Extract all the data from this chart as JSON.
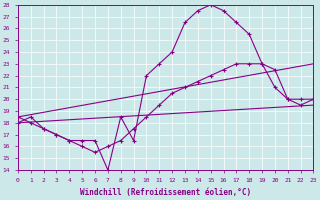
{
  "xlabel": "Windchill (Refroidissement éolien,°C)",
  "bg_color": "#cce8e8",
  "line_color": "#880088",
  "xmin": 0,
  "xmax": 23,
  "ymin": 14,
  "ymax": 28,
  "line1_x": [
    0,
    1,
    2,
    3,
    4,
    5,
    6,
    7,
    8,
    9,
    10,
    11,
    12,
    13,
    14,
    15,
    16,
    17,
    18,
    19,
    20,
    21,
    22,
    23
  ],
  "line1_y": [
    18.0,
    18.5,
    17.5,
    17.0,
    16.5,
    16.5,
    16.5,
    14.0,
    18.5,
    16.5,
    22.0,
    23.0,
    24.0,
    26.5,
    27.5,
    28.0,
    27.5,
    26.5,
    25.5,
    23.0,
    21.0,
    20.0,
    20.0,
    20.0
  ],
  "line2_x": [
    0,
    1,
    2,
    3,
    4,
    5,
    6,
    7,
    8,
    9,
    10,
    11,
    12,
    13,
    14,
    15,
    16,
    17,
    18,
    19,
    20,
    21,
    22,
    23
  ],
  "line2_y": [
    18.5,
    18.0,
    17.5,
    17.0,
    16.5,
    16.0,
    15.5,
    16.0,
    16.5,
    17.5,
    18.5,
    19.5,
    20.5,
    21.0,
    21.5,
    22.0,
    22.5,
    23.0,
    23.0,
    23.0,
    22.5,
    20.0,
    19.5,
    20.0
  ],
  "line3_x": [
    0,
    23
  ],
  "line3_y": [
    18.5,
    23.0
  ],
  "line4_x": [
    0,
    23
  ],
  "line4_y": [
    18.0,
    19.5
  ]
}
